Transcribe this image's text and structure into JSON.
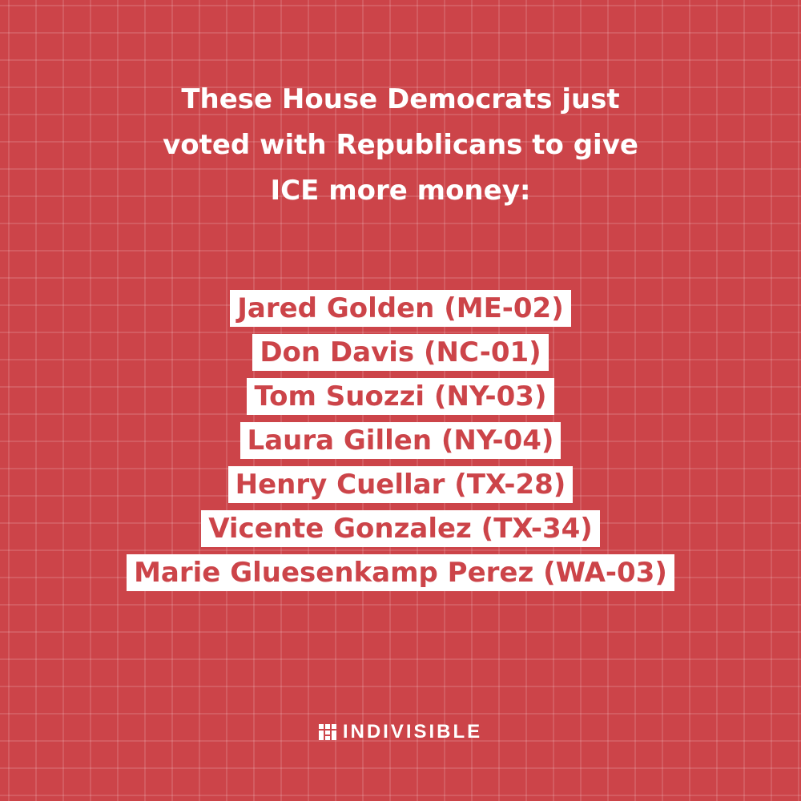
{
  "header": {
    "title_lines": [
      "These House Democrats just",
      "voted with Republicans to give",
      "ICE more money:"
    ]
  },
  "names": [
    "Jared Golden (ME-02)",
    "Don Davis (NC-01)",
    "Tom Suozzi (NY-03)",
    "Laura Gillen (NY-04)",
    "Henry Cuellar (TX-28)",
    "Vicente Gonzalez (TX-34)",
    "Marie Gluesenkamp Perez (WA-03)"
  ],
  "footer": {
    "logo_text": "INDIVISIBLE"
  }
}
